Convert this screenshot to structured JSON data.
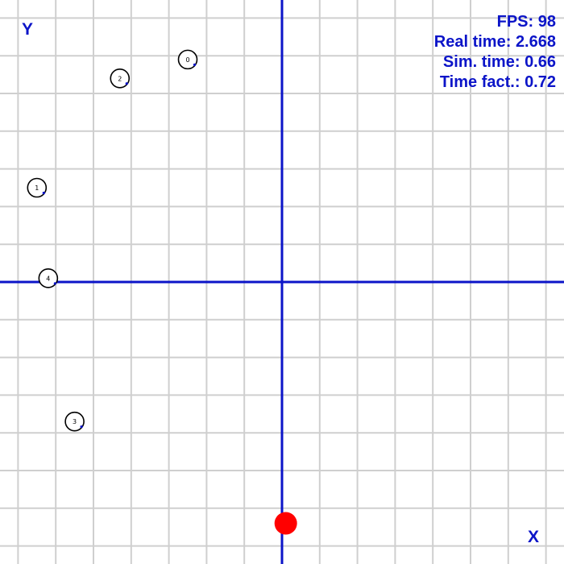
{
  "axes": {
    "x_label": "X",
    "y_label": "Y",
    "grid_color": "#cfcfcf",
    "axis_color": "#0b14c8"
  },
  "hud": {
    "fps_label": "FPS:",
    "fps_value": "98",
    "real_time_label": "Real time:",
    "real_time_value": "2.668",
    "sim_time_label": "Sim. time:",
    "sim_time_value": "0.66",
    "time_factor_label": "Time fact.:",
    "time_factor_value": "0.72",
    "color": "#0b14c8"
  },
  "bodies": [
    {
      "id": "0",
      "x": -2.5,
      "y": 5.9
    },
    {
      "id": "1",
      "x": -6.5,
      "y": 2.5
    },
    {
      "id": "2",
      "x": -4.3,
      "y": 5.4
    },
    {
      "id": "3",
      "x": -5.5,
      "y": -3.7
    },
    {
      "id": "4",
      "x": -6.2,
      "y": 0.1
    }
  ],
  "target": {
    "x": 0.1,
    "y": -6.4,
    "color": "#ff0000"
  }
}
